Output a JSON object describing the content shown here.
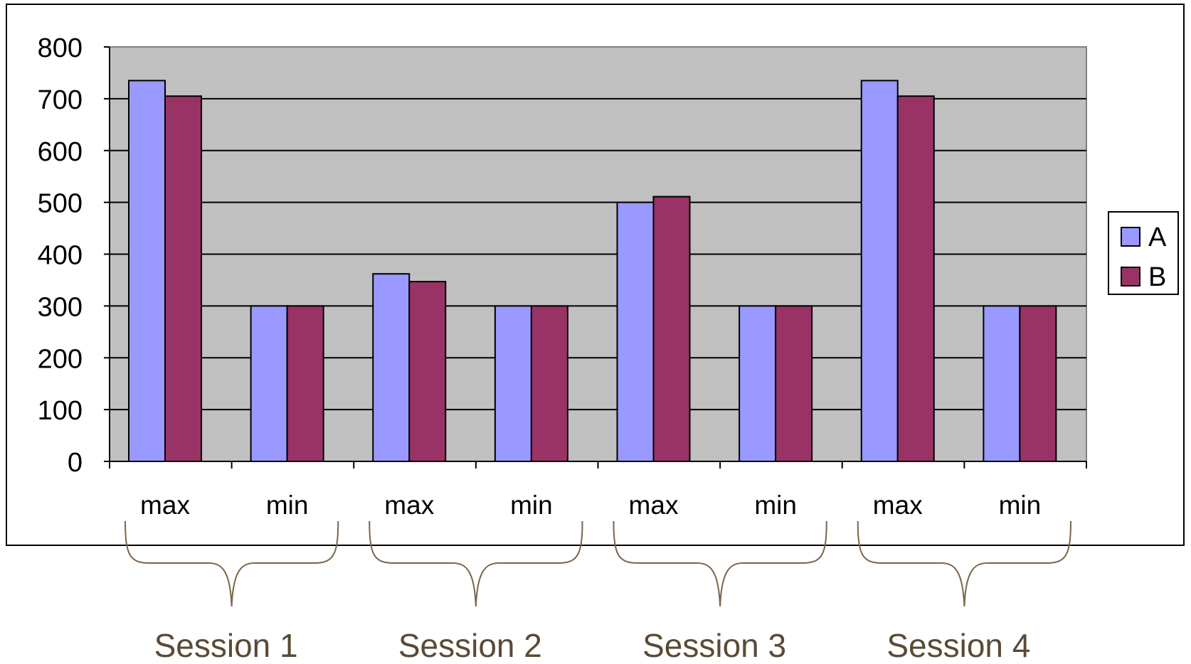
{
  "chart_data": {
    "type": "bar",
    "categories": [
      "max",
      "min",
      "max",
      "min",
      "max",
      "min",
      "max",
      "min"
    ],
    "groups": [
      {
        "label": "Session 1",
        "categories": [
          "max",
          "min"
        ]
      },
      {
        "label": "Session 2",
        "categories": [
          "max",
          "min"
        ]
      },
      {
        "label": "Session 3",
        "categories": [
          "max",
          "min"
        ]
      },
      {
        "label": "Session 4",
        "categories": [
          "max",
          "min"
        ]
      }
    ],
    "series": [
      {
        "name": "A",
        "color": "#9999ff",
        "values": [
          735,
          300,
          362,
          300,
          500,
          300,
          735,
          300
        ]
      },
      {
        "name": "B",
        "color": "#993366",
        "values": [
          705,
          300,
          347,
          300,
          511,
          300,
          705,
          300
        ]
      }
    ],
    "ylim": [
      0,
      800
    ],
    "yticks": [
      "0",
      "100",
      "200",
      "300",
      "400",
      "500",
      "600",
      "700",
      "800"
    ],
    "grid": true,
    "plot_background": "#c0c0c0",
    "group_label_color": "#5a4a36",
    "brace_color": "#7a6448",
    "legend": {
      "placement": "right",
      "entries": [
        "A",
        "B"
      ]
    }
  }
}
